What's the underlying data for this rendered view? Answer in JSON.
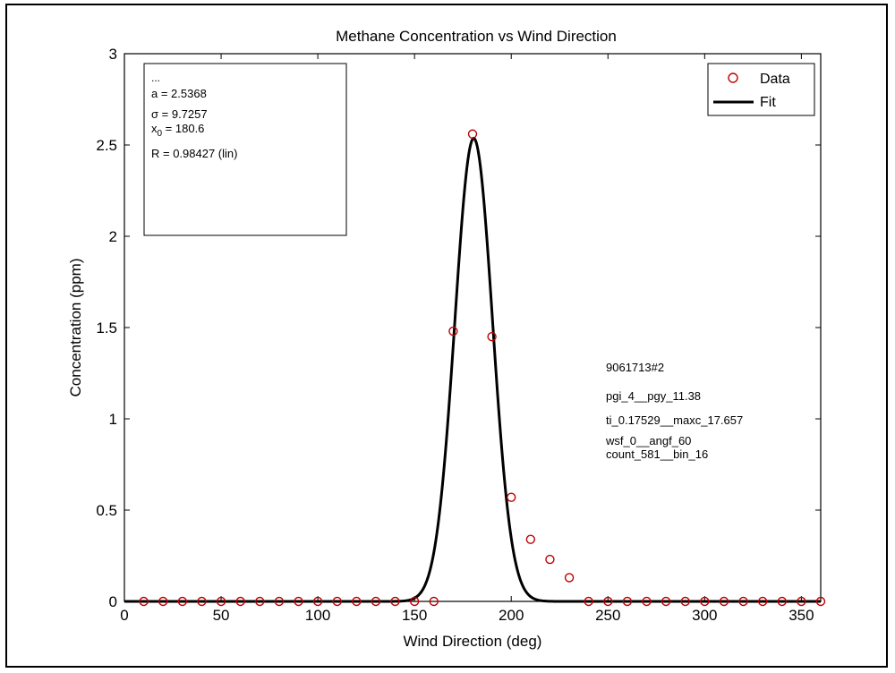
{
  "chart_data": {
    "type": "scatter",
    "title": "Methane Concentration vs Wind Direction",
    "xlabel": "Wind Direction (deg)",
    "ylabel": "Concentration (ppm)",
    "xlim": [
      0,
      360
    ],
    "ylim": [
      0,
      3
    ],
    "xticks": [
      0,
      50,
      100,
      150,
      200,
      250,
      300,
      350
    ],
    "yticks": [
      0,
      0.5,
      1,
      1.5,
      2,
      2.5,
      3
    ],
    "xtick_labels": [
      "0",
      "50",
      "100",
      "150",
      "200",
      "250",
      "300",
      "350"
    ],
    "ytick_labels": [
      "0",
      "0.5",
      "1",
      "1.5",
      "2",
      "2.5",
      "3"
    ],
    "grid": false,
    "legend_position": "top-right",
    "series": [
      {
        "name": "Data",
        "marker": "circle-open",
        "color": "#c00000",
        "x": [
          10,
          20,
          30,
          40,
          50,
          60,
          70,
          80,
          90,
          100,
          110,
          120,
          130,
          140,
          150,
          160,
          170,
          180,
          190,
          200,
          210,
          220,
          230,
          240,
          250,
          260,
          270,
          280,
          290,
          300,
          310,
          320,
          330,
          340,
          350,
          360
        ],
        "y": [
          0,
          0,
          0,
          0,
          0,
          0,
          0,
          0,
          0,
          0,
          0,
          0,
          0,
          0,
          0,
          0,
          1.48,
          2.56,
          1.45,
          0.57,
          0.34,
          0.23,
          0.13,
          0,
          0,
          0,
          0,
          0,
          0,
          0,
          0,
          0,
          0,
          0,
          0,
          0
        ]
      },
      {
        "name": "Fit",
        "kind": "gaussian",
        "color": "#000000",
        "a": 2.5368,
        "sigma": 9.7257,
        "x0": 180.6
      }
    ],
    "fit_box": {
      "ellipsis": "...",
      "a_text": "a = 2.5368",
      "sigma_text": "σ = 9.7257",
      "x0_prefix": "x",
      "x0_sub": "0",
      "x0_value": " = 180.6",
      "r_text": "R = 0.98427  (lin)"
    },
    "annotations": [
      "9061713#2",
      "pgi_4__pgy_11.38",
      "ti_0.17529__maxc_17.657",
      "wsf_0__angf_60",
      "count_581__bin_16"
    ]
  }
}
